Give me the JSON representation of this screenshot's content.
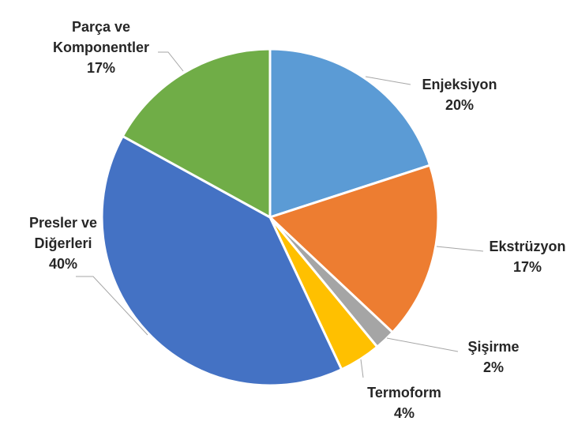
{
  "chart_data": {
    "type": "pie",
    "categories": [
      "Enjeksiyon",
      "Ekstrüzyon",
      "Şişirme",
      "Termoform",
      "Presler ve Diğerleri",
      "Parça ve Komponentler"
    ],
    "values": [
      20,
      17,
      2,
      4,
      40,
      17
    ],
    "value_labels": [
      "20%",
      "17%",
      "2%",
      "4%",
      "40%",
      "17%"
    ],
    "colors": [
      "#5b9bd5",
      "#ed7d31",
      "#a5a5a5",
      "#ffc000",
      "#4472c4",
      "#70ad47"
    ]
  }
}
